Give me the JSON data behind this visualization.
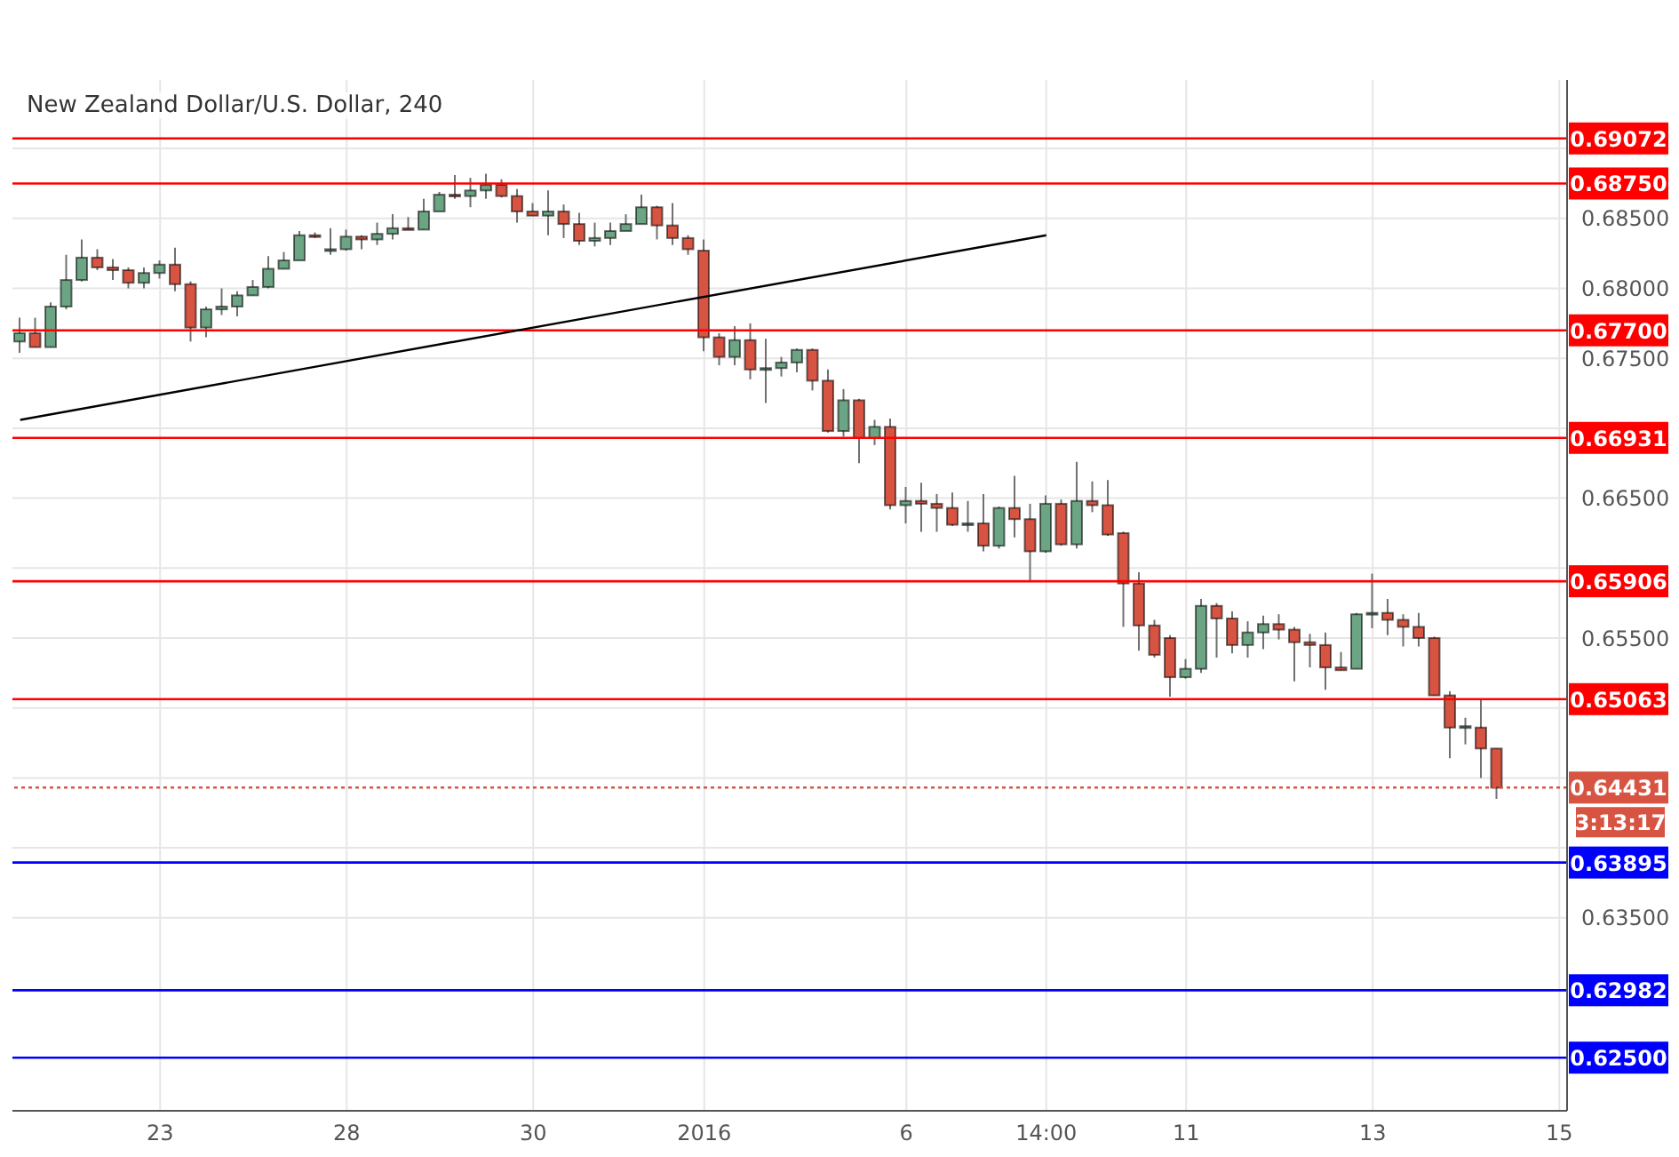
{
  "chart_data": {
    "type": "candlestick",
    "title": "New Zealand Dollar/U.S. Dollar, 240",
    "categories": [
      null,
      null,
      null,
      null,
      null,
      null,
      null,
      null,
      null,
      "23",
      null,
      null,
      null,
      null,
      null,
      null,
      null,
      null,
      null,
      null,
      null,
      "28",
      null,
      null,
      null,
      null,
      null,
      null,
      null,
      null,
      null,
      null,
      null,
      "30",
      null,
      null,
      null,
      null,
      null,
      null,
      null,
      null,
      null,
      null,
      "2016",
      null,
      null,
      null,
      null,
      null,
      null,
      null,
      null,
      null,
      null,
      null,
      null,
      "6",
      null,
      null,
      null,
      null,
      null,
      null,
      null,
      null,
      "14:00",
      null,
      null,
      null,
      null,
      null,
      null,
      null,
      null,
      "11",
      null,
      null,
      null,
      null,
      null,
      null,
      null,
      null,
      null,
      null,
      null,
      "13",
      null,
      null,
      null,
      null,
      null,
      null,
      null,
      null,
      null,
      null,
      null,
      "15"
    ],
    "ohlc": [
      [
        0.6762,
        0.6779,
        0.6754,
        0.6768
      ],
      [
        0.6768,
        0.6779,
        0.6758,
        0.6758
      ],
      [
        0.6758,
        0.679,
        0.6758,
        0.6787
      ],
      [
        0.6787,
        0.6824,
        0.6785,
        0.6806
      ],
      [
        0.6806,
        0.6835,
        0.6805,
        0.6822
      ],
      [
        0.6822,
        0.6828,
        0.6813,
        0.6815
      ],
      [
        0.6815,
        0.6821,
        0.6806,
        0.6813
      ],
      [
        0.6813,
        0.6815,
        0.68,
        0.6804
      ],
      [
        0.6804,
        0.6815,
        0.68,
        0.6811
      ],
      [
        0.6811,
        0.682,
        0.6807,
        0.6817
      ],
      [
        0.6817,
        0.6829,
        0.6798,
        0.6803
      ],
      [
        0.6803,
        0.6805,
        0.6762,
        0.6772
      ],
      [
        0.6772,
        0.6787,
        0.6765,
        0.6785
      ],
      [
        0.6785,
        0.68,
        0.6781,
        0.6787
      ],
      [
        0.6787,
        0.6798,
        0.678,
        0.6795
      ],
      [
        0.6795,
        0.6806,
        0.6795,
        0.6801
      ],
      [
        0.6801,
        0.6823,
        0.68,
        0.6814
      ],
      [
        0.6814,
        0.6826,
        0.6814,
        0.682
      ],
      [
        0.682,
        0.6841,
        0.682,
        0.6838
      ],
      [
        0.6838,
        0.684,
        0.6836,
        0.6837
      ],
      [
        0.6827,
        0.6843,
        0.6824,
        0.6828
      ],
      [
        0.6828,
        0.6842,
        0.6827,
        0.6837
      ],
      [
        0.6837,
        0.6838,
        0.6828,
        0.6835
      ],
      [
        0.6835,
        0.6847,
        0.6831,
        0.6839
      ],
      [
        0.6839,
        0.6853,
        0.6835,
        0.6843
      ],
      [
        0.6843,
        0.6851,
        0.6842,
        0.6842
      ],
      [
        0.6842,
        0.6864,
        0.6842,
        0.6855
      ],
      [
        0.6855,
        0.6869,
        0.6855,
        0.6867
      ],
      [
        0.6867,
        0.6881,
        0.6864,
        0.6866
      ],
      [
        0.6866,
        0.6879,
        0.6858,
        0.687
      ],
      [
        0.687,
        0.6882,
        0.6864,
        0.6874
      ],
      [
        0.6874,
        0.6878,
        0.6865,
        0.6866
      ],
      [
        0.6866,
        0.6871,
        0.6847,
        0.6855
      ],
      [
        0.6855,
        0.6861,
        0.6852,
        0.6852
      ],
      [
        0.6852,
        0.687,
        0.6838,
        0.6855
      ],
      [
        0.6855,
        0.686,
        0.6836,
        0.6846
      ],
      [
        0.6846,
        0.6854,
        0.6831,
        0.6834
      ],
      [
        0.6834,
        0.6847,
        0.683,
        0.6836
      ],
      [
        0.6836,
        0.6847,
        0.6831,
        0.6841
      ],
      [
        0.6841,
        0.6853,
        0.6841,
        0.6846
      ],
      [
        0.6846,
        0.6867,
        0.6846,
        0.6858
      ],
      [
        0.6858,
        0.6859,
        0.6835,
        0.6845
      ],
      [
        0.6845,
        0.6861,
        0.6831,
        0.6836
      ],
      [
        0.6836,
        0.6838,
        0.6824,
        0.6828
      ],
      [
        0.6827,
        0.6835,
        0.6755,
        0.6765
      ],
      [
        0.6765,
        0.6768,
        0.6745,
        0.6751
      ],
      [
        0.6751,
        0.6773,
        0.6745,
        0.6763
      ],
      [
        0.6763,
        0.6775,
        0.6735,
        0.6742
      ],
      [
        0.6742,
        0.6764,
        0.6718,
        0.6743
      ],
      [
        0.6743,
        0.6751,
        0.6737,
        0.6747
      ],
      [
        0.6747,
        0.6757,
        0.674,
        0.6756
      ],
      [
        0.6756,
        0.6757,
        0.6727,
        0.6734
      ],
      [
        0.6734,
        0.6742,
        0.6697,
        0.6698
      ],
      [
        0.6698,
        0.6728,
        0.6694,
        0.672
      ],
      [
        0.672,
        0.6721,
        0.6675,
        0.6693
      ],
      [
        0.6693,
        0.6706,
        0.6688,
        0.6701
      ],
      [
        0.6701,
        0.6707,
        0.6642,
        0.6645
      ],
      [
        0.6645,
        0.6658,
        0.6632,
        0.6648
      ],
      [
        0.6648,
        0.6661,
        0.6626,
        0.6646
      ],
      [
        0.6646,
        0.6653,
        0.6626,
        0.6643
      ],
      [
        0.6643,
        0.6654,
        0.663,
        0.6631
      ],
      [
        0.6631,
        0.6648,
        0.6626,
        0.6632
      ],
      [
        0.6632,
        0.6653,
        0.6612,
        0.6616
      ],
      [
        0.6616,
        0.6644,
        0.6614,
        0.6643
      ],
      [
        0.6643,
        0.6666,
        0.6622,
        0.6635
      ],
      [
        0.6635,
        0.6646,
        0.6591,
        0.6612
      ],
      [
        0.6612,
        0.6652,
        0.6611,
        0.6646
      ],
      [
        0.6646,
        0.6649,
        0.6616,
        0.6617
      ],
      [
        0.6617,
        0.6676,
        0.6614,
        0.6648
      ],
      [
        0.6648,
        0.6662,
        0.664,
        0.6645
      ],
      [
        0.6645,
        0.6663,
        0.6623,
        0.6624
      ],
      [
        0.6625,
        0.6626,
        0.6558,
        0.6589
      ],
      [
        0.6589,
        0.6597,
        0.6541,
        0.6559
      ],
      [
        0.6559,
        0.6563,
        0.6536,
        0.6538
      ],
      [
        0.655,
        0.6552,
        0.6508,
        0.6522
      ],
      [
        0.6522,
        0.6535,
        0.6521,
        0.6528
      ],
      [
        0.6528,
        0.6578,
        0.6525,
        0.6573
      ],
      [
        0.6573,
        0.6575,
        0.6536,
        0.6564
      ],
      [
        0.6564,
        0.6569,
        0.6539,
        0.6545
      ],
      [
        0.6545,
        0.6562,
        0.6536,
        0.6554
      ],
      [
        0.6554,
        0.6566,
        0.6542,
        0.656
      ],
      [
        0.656,
        0.6567,
        0.6549,
        0.6556
      ],
      [
        0.6556,
        0.6558,
        0.6519,
        0.6547
      ],
      [
        0.6547,
        0.6553,
        0.6529,
        0.6545
      ],
      [
        0.6545,
        0.6554,
        0.6513,
        0.6529
      ],
      [
        0.6529,
        0.654,
        0.6527,
        0.6527
      ],
      [
        0.6528,
        0.6568,
        0.6528,
        0.6567
      ],
      [
        0.6567,
        0.6596,
        0.6557,
        0.6568
      ],
      [
        0.6568,
        0.6578,
        0.6552,
        0.6563
      ],
      [
        0.6563,
        0.6567,
        0.6544,
        0.6558
      ],
      [
        0.6558,
        0.6568,
        0.6544,
        0.655
      ],
      [
        0.655,
        0.6551,
        0.6509,
        0.6509
      ],
      [
        0.6509,
        0.6512,
        0.6464,
        0.6486
      ],
      [
        0.6486,
        0.6493,
        0.6474,
        0.6487
      ],
      [
        0.6486,
        0.6506,
        0.645,
        0.6471
      ],
      [
        0.6471,
        0.6471,
        0.6435,
        0.6443
      ],
      null,
      null,
      null,
      null
    ],
    "colors": [
      "#6ba583",
      "#d75442",
      "#6ba583",
      "#6ba583",
      "#6ba583",
      "#d75442",
      "#d75442",
      "#d75442",
      "#6ba583",
      "#6ba583",
      "#d75442",
      "#d75442",
      "#6ba583",
      "#6ba583",
      "#6ba583",
      "#6ba583",
      "#6ba583",
      "#6ba583",
      "#6ba583",
      "#d75442",
      "#6ba583",
      "#6ba583",
      "#d75442",
      "#6ba583",
      "#6ba583",
      "#d75442",
      "#6ba583",
      "#6ba583",
      "#d75442",
      "#6ba583",
      "#6ba583",
      "#d75442",
      "#d75442",
      "#d75442",
      "#6ba583",
      "#d75442",
      "#d75442",
      "#6ba583",
      "#6ba583",
      "#6ba583",
      "#6ba583",
      "#d75442",
      "#d75442",
      "#d75442",
      "#d75442",
      "#d75442",
      "#6ba583",
      "#d75442",
      "#6ba583",
      "#6ba583",
      "#6ba583",
      "#d75442",
      "#d75442",
      "#6ba583",
      "#d75442",
      "#6ba583",
      "#d75442",
      "#6ba583",
      "#d75442",
      "#d75442",
      "#d75442",
      "#6ba583",
      "#d75442",
      "#6ba583",
      "#d75442",
      "#d75442",
      "#6ba583",
      "#d75442",
      "#6ba583",
      "#d75442",
      "#d75442",
      "#d75442",
      "#d75442",
      "#d75442",
      "#d75442",
      "#6ba583",
      "#6ba583",
      "#d75442",
      "#d75442",
      "#6ba583",
      "#6ba583",
      "#d75442",
      "#d75442",
      "#d75442",
      "#d75442",
      "#d75442",
      "#6ba583",
      "#6ba583",
      "#d75442",
      "#d75442",
      "#d75442",
      "#d75442",
      "#d75442",
      "#6ba583",
      "#d75442",
      "#d75442",
      null,
      null,
      null,
      null
    ],
    "series": [
      {
        "type": "line",
        "color": "#000000",
        "values": [
          0.6706,
          null,
          null,
          null,
          null,
          null,
          null,
          null,
          null,
          null,
          null,
          null,
          null,
          null,
          null,
          null,
          null,
          null,
          null,
          null,
          null,
          null,
          null,
          null,
          null,
          null,
          null,
          null,
          null,
          null,
          null,
          null,
          null,
          null,
          null,
          null,
          null,
          null,
          null,
          null,
          null,
          null,
          null,
          null,
          null,
          null,
          null,
          null,
          null,
          null,
          null,
          null,
          null,
          null,
          null,
          null,
          null,
          null,
          null,
          null,
          null,
          null,
          null,
          null,
          null,
          null,
          0.6838,
          null,
          null,
          null,
          null,
          null,
          null,
          null,
          null,
          null,
          null,
          null,
          null,
          null,
          null,
          null,
          null,
          null,
          null,
          null,
          null,
          null,
          null,
          null,
          null,
          null,
          null,
          null,
          null,
          null,
          null,
          null,
          null,
          null
        ]
      }
    ],
    "ylim": [
      0.6212,
      0.6949
    ],
    "yticks": [
      {
        "value": 0.635,
        "label": "0.63500"
      },
      {
        "value": 0.64,
        "label": null
      },
      {
        "value": 0.645,
        "label": null
      },
      {
        "value": 0.65,
        "label": null
      },
      {
        "value": 0.655,
        "label": "0.65500"
      },
      {
        "value": 0.66,
        "label": null
      },
      {
        "value": 0.665,
        "label": "0.66500"
      },
      {
        "value": 0.67,
        "label": null
      },
      {
        "value": 0.675,
        "label": "0.67500"
      },
      {
        "value": 0.68,
        "label": "0.68000"
      },
      {
        "value": 0.685,
        "label": "0.68500"
      },
      {
        "value": 0.69,
        "label": null
      }
    ],
    "grid": true,
    "legend": false,
    "ref_lines": [
      {
        "axis": "y",
        "value": 0.69072,
        "label": "0.69072",
        "color": "#ff0000"
      },
      {
        "axis": "y",
        "value": 0.6875,
        "label": "0.68750",
        "color": "#ff0000"
      },
      {
        "axis": "y",
        "value": 0.677,
        "label": "0.67700",
        "color": "#ff0000"
      },
      {
        "axis": "y",
        "value": 0.66931,
        "label": "0.66931",
        "color": "#ff0000"
      },
      {
        "axis": "y",
        "value": 0.65906,
        "label": "0.65906",
        "color": "#ff0000"
      },
      {
        "axis": "y",
        "value": 0.65063,
        "label": "0.65063",
        "color": "#ff0000"
      },
      {
        "axis": "y",
        "value": 0.64431,
        "label": "0.64431",
        "color": "#d75442",
        "line_style": "dotted"
      },
      {
        "axis": "y",
        "value": 0.63895,
        "label": "0.63895",
        "color": "#0000ff"
      },
      {
        "axis": "y",
        "value": 0.62982,
        "label": "0.62982",
        "color": "#0000ff"
      },
      {
        "axis": "y",
        "value": 0.625,
        "label": "0.62500",
        "color": "#0000ff"
      }
    ],
    "annotations": [
      "3:13:17"
    ]
  }
}
